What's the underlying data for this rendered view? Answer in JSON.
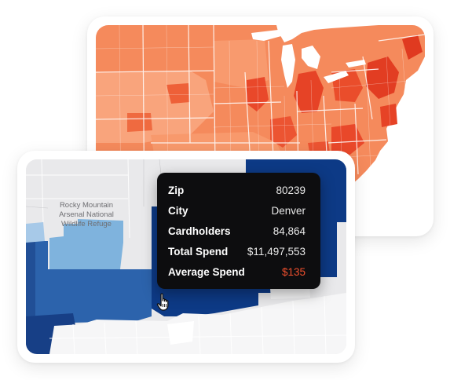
{
  "map_label": {
    "lines": [
      "Rocky Mountain",
      "Arsenal National",
      "Wildlife Refuge"
    ]
  },
  "tooltip": {
    "rows": [
      {
        "label": "Zip",
        "value": "80239"
      },
      {
        "label": "City",
        "value": "Denver"
      },
      {
        "label": "Cardholders",
        "value": "84,864"
      },
      {
        "label": "Total Spend",
        "value": "$11,497,553"
      },
      {
        "label": "Average Spend",
        "value": "$135"
      }
    ]
  },
  "colors": {
    "us_map_base": "#f58a5c",
    "us_map_dark": "#e9482a",
    "us_map_light": "#f9a47c",
    "zip_dark_blue": "#0d3a86",
    "zip_mid_blue": "#2c63ac",
    "zip_light_blue": "#7fb3dd",
    "average_spend_accent": "#f0502e"
  },
  "icons": {
    "cursor": "hand-pointer-icon"
  }
}
